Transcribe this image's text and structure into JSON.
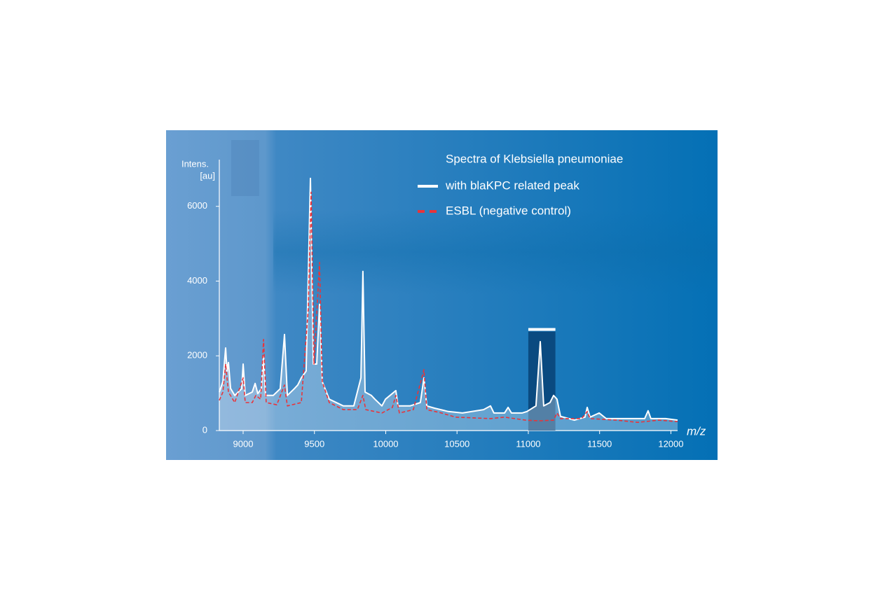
{
  "chart_data": {
    "type": "line",
    "title": "Spectra of Klebsiella pneumoniae",
    "ylabel": [
      "Intens.",
      "[au]"
    ],
    "xlabel": "m/z",
    "xlim": [
      8833,
      12047
    ],
    "ylim": [
      0,
      7250
    ],
    "xticks": [
      9000,
      9500,
      10000,
      10500,
      11000,
      11500,
      12000
    ],
    "yticks": [
      0,
      2000,
      4000,
      6000
    ],
    "highlight": {
      "x": [
        11000,
        11190
      ],
      "y": 2650,
      "color": "#0a4a80"
    },
    "series": [
      {
        "name": "with blaKPC related peak",
        "color": "#ffffff",
        "line_style": "solid",
        "fill": true,
        "x": [
          8833,
          8858,
          8877,
          8887,
          8897,
          8912,
          8941,
          8990,
          9000,
          9015,
          9064,
          9084,
          9103,
          9128,
          9143,
          9157,
          9211,
          9260,
          9290,
          9310,
          9359,
          9383,
          9408,
          9442,
          9472,
          9492,
          9516,
          9536,
          9555,
          9604,
          9703,
          9776,
          9826,
          9840,
          9855,
          9899,
          9924,
          9973,
          9998,
          10071,
          10086,
          10170,
          10243,
          10268,
          10288,
          10342,
          10440,
          10538,
          10686,
          10735,
          10759,
          10833,
          10858,
          10882,
          10956,
          10990,
          11054,
          11084,
          11108,
          11152,
          11177,
          11201,
          11226,
          11324,
          11398,
          11413,
          11433,
          11497,
          11546,
          11620,
          11718,
          11816,
          11840,
          11860,
          11963,
          12047
        ],
        "values": [
          1030,
          1310,
          2210,
          1590,
          1820,
          1125,
          940,
          1120,
          1780,
          940,
          1030,
          1260,
          990,
          1120,
          1970,
          940,
          940,
          1120,
          2570,
          940,
          1120,
          1220,
          1410,
          1590,
          6750,
          1780,
          1780,
          3380,
          1310,
          840,
          660,
          660,
          1410,
          4260,
          1030,
          940,
          840,
          660,
          840,
          1070,
          660,
          660,
          750,
          1410,
          660,
          600,
          510,
          470,
          560,
          660,
          470,
          470,
          620,
          470,
          470,
          510,
          660,
          2380,
          660,
          750,
          940,
          840,
          380,
          280,
          360,
          620,
          360,
          470,
          320,
          320,
          320,
          320,
          530,
          320,
          320,
          280
        ]
      },
      {
        "name": "ESBL (negative control)",
        "color": "#e8343a",
        "line_style": "dashed",
        "fill": false,
        "x": [
          8833,
          8858,
          8877,
          8897,
          8941,
          9000,
          9015,
          9064,
          9089,
          9123,
          9143,
          9162,
          9236,
          9290,
          9310,
          9408,
          9457,
          9477,
          9497,
          9536,
          9555,
          9604,
          9703,
          9801,
          9840,
          9860,
          9973,
          10047,
          10071,
          10096,
          10194,
          10268,
          10288,
          10391,
          10489,
          10735,
          10833,
          10980,
          11079,
          11177,
          11201,
          11226,
          11373,
          11413,
          11433,
          11620,
          11767,
          11914,
          12047
        ],
        "values": [
          810,
          1030,
          1780,
          1030,
          750,
          1410,
          750,
          750,
          940,
          840,
          2440,
          750,
          690,
          1220,
          660,
          750,
          3280,
          6380,
          1780,
          4500,
          1310,
          750,
          560,
          560,
          940,
          560,
          470,
          620,
          940,
          470,
          560,
          1630,
          560,
          470,
          360,
          320,
          360,
          280,
          260,
          280,
          470,
          320,
          320,
          510,
          320,
          280,
          220,
          280,
          240
        ]
      }
    ]
  }
}
